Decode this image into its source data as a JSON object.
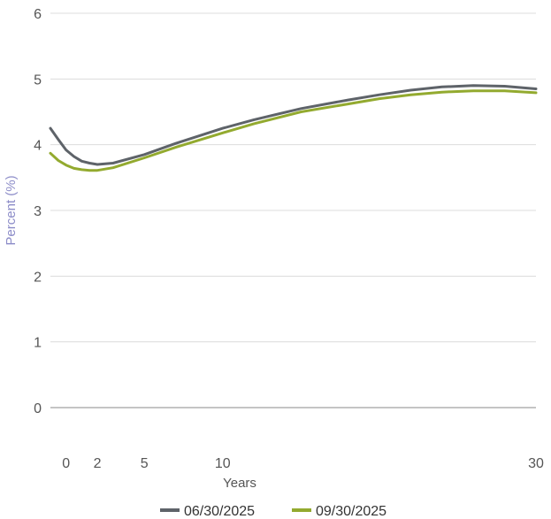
{
  "chart_data": {
    "type": "line",
    "xlabel": "Years",
    "ylabel": "Percent (%)",
    "xlim": [
      -1.0,
      30
    ],
    "ylim": [
      0,
      6
    ],
    "x_ticks": [
      0,
      2,
      5,
      10,
      30
    ],
    "y_ticks": [
      0,
      1,
      2,
      3,
      4,
      5,
      6
    ],
    "grid": "horizontal",
    "legend_position": "bottom",
    "series": [
      {
        "name": "06/30/2025",
        "color": "#5e6369",
        "x": [
          -1.0,
          -0.5,
          0,
          0.5,
          1,
          1.5,
          2,
          3,
          5,
          7,
          10,
          12,
          15,
          18,
          20,
          22,
          24,
          26,
          28,
          30
        ],
        "y": [
          4.25,
          4.08,
          3.92,
          3.82,
          3.75,
          3.72,
          3.7,
          3.72,
          3.85,
          4.02,
          4.25,
          4.38,
          4.55,
          4.68,
          4.76,
          4.83,
          4.88,
          4.9,
          4.89,
          4.85
        ]
      },
      {
        "name": "09/30/2025",
        "color": "#93aa2f",
        "x": [
          -1.0,
          -0.5,
          0,
          0.5,
          1,
          1.5,
          2,
          3,
          5,
          7,
          10,
          12,
          15,
          18,
          20,
          22,
          24,
          26,
          28,
          30
        ],
        "y": [
          3.87,
          3.76,
          3.69,
          3.64,
          3.62,
          3.61,
          3.61,
          3.65,
          3.8,
          3.96,
          4.18,
          4.32,
          4.5,
          4.62,
          4.7,
          4.76,
          4.8,
          4.82,
          4.82,
          4.79
        ]
      }
    ]
  }
}
